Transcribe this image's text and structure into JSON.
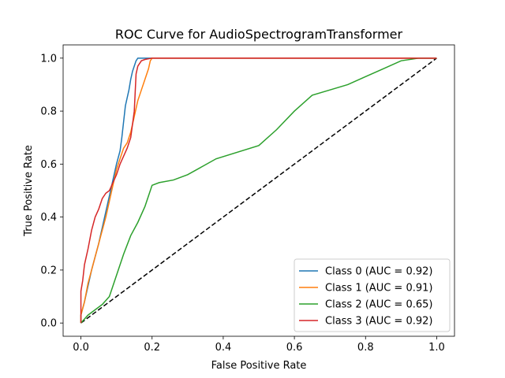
{
  "chart_data": {
    "type": "line",
    "title": "ROC Curve for AudioSpectrogramTransformer",
    "xlabel": "False Positive Rate",
    "ylabel": "True Positive Rate",
    "xlim": [
      -0.05,
      1.05
    ],
    "ylim": [
      -0.05,
      1.05
    ],
    "x_ticks": [
      {
        "value": 0.0,
        "label": "0.0"
      },
      {
        "value": 0.2,
        "label": "0.2"
      },
      {
        "value": 0.4,
        "label": "0.4"
      },
      {
        "value": 0.6,
        "label": "0.6"
      },
      {
        "value": 0.8,
        "label": "0.8"
      },
      {
        "value": 1.0,
        "label": "1.0"
      }
    ],
    "y_ticks": [
      {
        "value": 0.0,
        "label": "0.0"
      },
      {
        "value": 0.2,
        "label": "0.2"
      },
      {
        "value": 0.4,
        "label": "0.4"
      },
      {
        "value": 0.6,
        "label": "0.6"
      },
      {
        "value": 0.8,
        "label": "0.8"
      },
      {
        "value": 1.0,
        "label": "1.0"
      }
    ],
    "grid": false,
    "legend_position": "lower right",
    "series": [
      {
        "name": "Class 0 (AUC = 0.92)",
        "color": "#1f77b4",
        "x": [
          0.0,
          0.0,
          0.01,
          0.02,
          0.03,
          0.04,
          0.05,
          0.06,
          0.07,
          0.08,
          0.09,
          0.1,
          0.11,
          0.115,
          0.12,
          0.125,
          0.13,
          0.135,
          0.14,
          0.145,
          0.15,
          0.155,
          0.16,
          0.2,
          0.4,
          0.6,
          0.8,
          1.0
        ],
        "y": [
          0.0,
          0.03,
          0.08,
          0.14,
          0.2,
          0.25,
          0.3,
          0.36,
          0.42,
          0.48,
          0.54,
          0.6,
          0.65,
          0.7,
          0.76,
          0.82,
          0.85,
          0.88,
          0.92,
          0.95,
          0.97,
          0.99,
          1.0,
          1.0,
          1.0,
          1.0,
          1.0,
          1.0
        ]
      },
      {
        "name": "Class 1 (AUC = 0.91)",
        "color": "#ff7f0e",
        "x": [
          0.0,
          0.0,
          0.01,
          0.02,
          0.03,
          0.04,
          0.05,
          0.06,
          0.07,
          0.08,
          0.09,
          0.1,
          0.11,
          0.12,
          0.13,
          0.14,
          0.15,
          0.16,
          0.17,
          0.18,
          0.19,
          0.195,
          0.2,
          0.4,
          0.6,
          0.8,
          1.0
        ],
        "y": [
          0.0,
          0.03,
          0.08,
          0.15,
          0.2,
          0.25,
          0.3,
          0.35,
          0.4,
          0.46,
          0.52,
          0.58,
          0.62,
          0.66,
          0.68,
          0.72,
          0.78,
          0.84,
          0.88,
          0.92,
          0.96,
          0.99,
          1.0,
          1.0,
          1.0,
          1.0,
          1.0
        ]
      },
      {
        "name": "Class 2 (AUC = 0.65)",
        "color": "#2ca02c",
        "x": [
          0.0,
          0.02,
          0.04,
          0.06,
          0.08,
          0.1,
          0.12,
          0.14,
          0.16,
          0.18,
          0.19,
          0.2,
          0.22,
          0.26,
          0.3,
          0.34,
          0.38,
          0.5,
          0.55,
          0.6,
          0.65,
          0.7,
          0.75,
          0.8,
          0.85,
          0.9,
          0.95,
          1.0
        ],
        "y": [
          0.0,
          0.03,
          0.05,
          0.07,
          0.1,
          0.18,
          0.26,
          0.33,
          0.38,
          0.44,
          0.48,
          0.52,
          0.53,
          0.54,
          0.56,
          0.59,
          0.62,
          0.67,
          0.73,
          0.8,
          0.86,
          0.88,
          0.9,
          0.93,
          0.96,
          0.99,
          1.0,
          1.0
        ]
      },
      {
        "name": "Class 3 (AUC = 0.92)",
        "color": "#d62728",
        "x": [
          0.0,
          0.0,
          0.005,
          0.01,
          0.02,
          0.03,
          0.04,
          0.05,
          0.06,
          0.07,
          0.08,
          0.09,
          0.1,
          0.11,
          0.12,
          0.13,
          0.14,
          0.15,
          0.155,
          0.16,
          0.17,
          0.18,
          0.2,
          0.4,
          0.6,
          0.8,
          1.0
        ],
        "y": [
          0.0,
          0.12,
          0.16,
          0.22,
          0.28,
          0.35,
          0.4,
          0.43,
          0.47,
          0.49,
          0.5,
          0.53,
          0.56,
          0.6,
          0.63,
          0.66,
          0.7,
          0.8,
          0.94,
          0.97,
          0.99,
          0.995,
          1.0,
          1.0,
          1.0,
          1.0,
          1.0
        ]
      }
    ],
    "reference_line": {
      "x": [
        0.0,
        1.0
      ],
      "y": [
        0.0,
        1.0
      ],
      "color": "#000000",
      "style": "dashed"
    }
  }
}
